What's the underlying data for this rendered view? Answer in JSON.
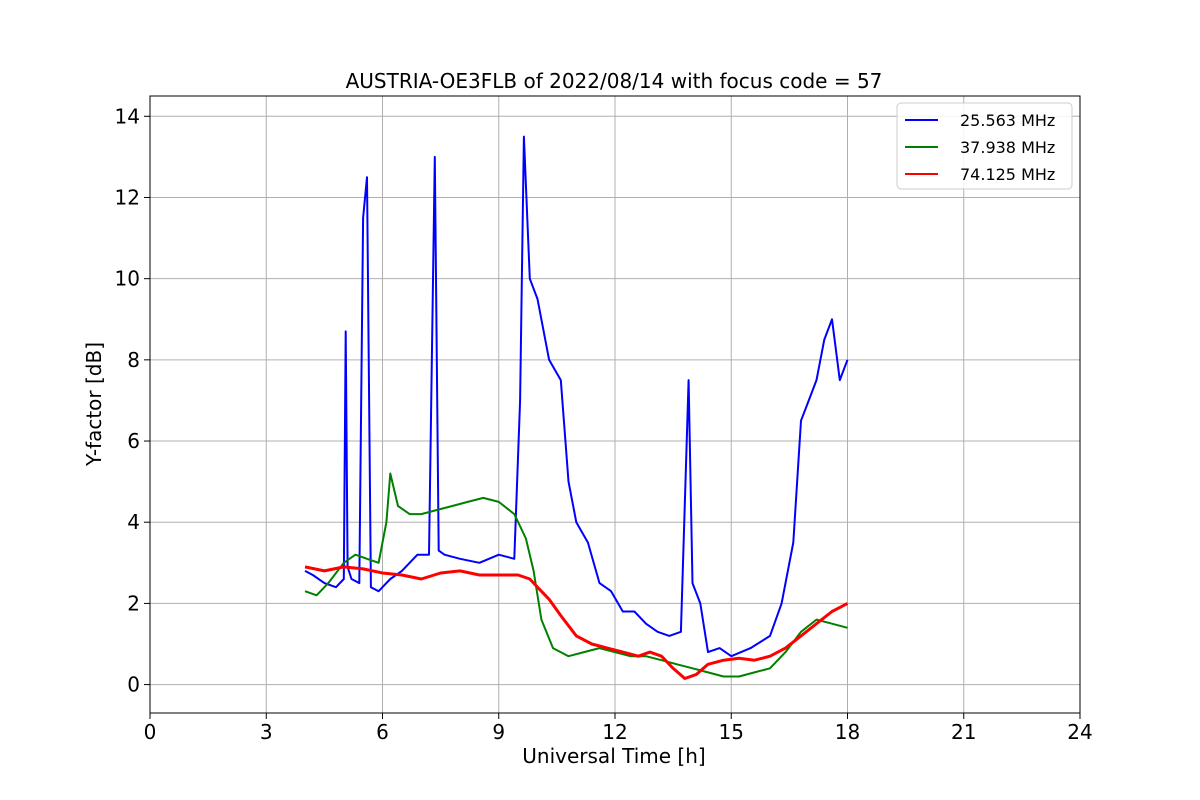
{
  "chart_data": {
    "type": "line",
    "title": "AUSTRIA-OE3FLB of 2022/08/14 with focus code = 57",
    "xlabel": "Universal Time [h]",
    "ylabel": "Y-factor [dB]",
    "xlim": [
      0,
      24
    ],
    "ylim": [
      -0.7,
      14.5
    ],
    "xticks": [
      0,
      3,
      6,
      9,
      12,
      15,
      18,
      21,
      24
    ],
    "yticks": [
      0,
      2,
      4,
      6,
      8,
      10,
      12,
      14
    ],
    "grid": true,
    "legend_position": "top-right",
    "series": [
      {
        "name": "25.563 MHz",
        "color": "#0000ff",
        "x": [
          4.0,
          4.2,
          4.5,
          4.8,
          5.0,
          5.05,
          5.1,
          5.2,
          5.4,
          5.5,
          5.6,
          5.7,
          5.9,
          6.2,
          6.5,
          6.9,
          7.2,
          7.35,
          7.45,
          7.6,
          8.0,
          8.5,
          9.0,
          9.4,
          9.55,
          9.65,
          9.8,
          10.0,
          10.3,
          10.6,
          10.8,
          11.0,
          11.3,
          11.6,
          11.9,
          12.2,
          12.5,
          12.8,
          13.1,
          13.4,
          13.7,
          13.9,
          14.0,
          14.2,
          14.4,
          14.7,
          15.0,
          15.5,
          16.0,
          16.3,
          16.6,
          16.8,
          17.0,
          17.2,
          17.4,
          17.6,
          17.8,
          18.0
        ],
        "y": [
          2.8,
          2.7,
          2.5,
          2.4,
          2.6,
          8.7,
          2.9,
          2.6,
          2.5,
          11.5,
          12.5,
          2.4,
          2.3,
          2.6,
          2.8,
          3.2,
          3.2,
          13.0,
          3.3,
          3.2,
          3.1,
          3.0,
          3.2,
          3.1,
          7.0,
          13.5,
          10.0,
          9.5,
          8.0,
          7.5,
          5.0,
          4.0,
          3.5,
          2.5,
          2.3,
          1.8,
          1.8,
          1.5,
          1.3,
          1.2,
          1.3,
          7.5,
          2.5,
          2.0,
          0.8,
          0.9,
          0.7,
          0.9,
          1.2,
          2.0,
          3.5,
          6.5,
          7.0,
          7.5,
          8.5,
          9.0,
          7.5,
          8.0
        ]
      },
      {
        "name": "37.938 MHz",
        "color": "#008000",
        "x": [
          4.0,
          4.3,
          4.6,
          5.0,
          5.3,
          5.6,
          5.9,
          6.1,
          6.2,
          6.4,
          6.7,
          7.0,
          7.4,
          7.8,
          8.2,
          8.6,
          9.0,
          9.4,
          9.7,
          9.9,
          10.1,
          10.4,
          10.8,
          11.2,
          11.6,
          12.0,
          12.4,
          12.8,
          13.2,
          13.6,
          14.0,
          14.4,
          14.8,
          15.2,
          15.6,
          16.0,
          16.4,
          16.8,
          17.2,
          17.6,
          18.0
        ],
        "y": [
          2.3,
          2.2,
          2.5,
          3.0,
          3.2,
          3.1,
          3.0,
          4.0,
          5.2,
          4.4,
          4.2,
          4.2,
          4.3,
          4.4,
          4.5,
          4.6,
          4.5,
          4.2,
          3.6,
          2.8,
          1.6,
          0.9,
          0.7,
          0.8,
          0.9,
          0.8,
          0.7,
          0.7,
          0.6,
          0.5,
          0.4,
          0.3,
          0.2,
          0.2,
          0.3,
          0.4,
          0.8,
          1.3,
          1.6,
          1.5,
          1.4
        ]
      },
      {
        "name": "74.125 MHz",
        "color": "#ff0000",
        "x": [
          4.0,
          4.5,
          5.0,
          5.5,
          6.0,
          6.5,
          7.0,
          7.5,
          8.0,
          8.5,
          9.0,
          9.5,
          9.8,
          10.0,
          10.3,
          10.6,
          11.0,
          11.4,
          11.8,
          12.2,
          12.6,
          12.9,
          13.2,
          13.5,
          13.8,
          14.1,
          14.4,
          14.8,
          15.2,
          15.6,
          16.0,
          16.4,
          16.8,
          17.2,
          17.6,
          18.0
        ],
        "y": [
          2.9,
          2.8,
          2.9,
          2.85,
          2.75,
          2.7,
          2.6,
          2.75,
          2.8,
          2.7,
          2.7,
          2.7,
          2.6,
          2.4,
          2.1,
          1.7,
          1.2,
          1.0,
          0.9,
          0.8,
          0.7,
          0.8,
          0.7,
          0.4,
          0.15,
          0.25,
          0.5,
          0.6,
          0.65,
          0.6,
          0.7,
          0.9,
          1.2,
          1.5,
          1.8,
          2.0
        ]
      }
    ]
  }
}
